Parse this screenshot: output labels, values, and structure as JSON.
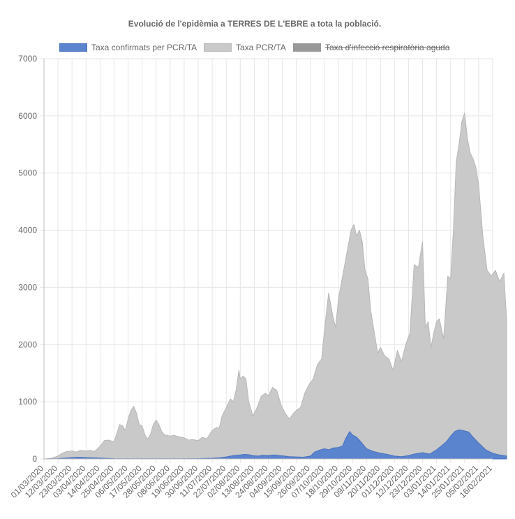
{
  "chart_data": {
    "type": "area",
    "title": "Evolució de l'epidèmia a TERRES DE L'EBRE a tota la població.",
    "xlabel": "",
    "ylabel": "",
    "ylim": [
      0,
      7000
    ],
    "yticks": [
      0,
      1000,
      2000,
      3000,
      4000,
      5000,
      6000,
      7000
    ],
    "grid": true,
    "legend_position": "top",
    "categories": [
      "01/03/2020",
      "12/03/2020",
      "23/03/2020",
      "03/04/2020",
      "14/04/2020",
      "25/04/2020",
      "06/05/2020",
      "17/05/2020",
      "28/05/2020",
      "08/06/2020",
      "19/06/2020",
      "30/06/2020",
      "11/07/2020",
      "22/07/2020",
      "02/08/2020",
      "13/08/2020",
      "24/08/2020",
      "04/09/2020",
      "15/09/2020",
      "26/09/2020",
      "07/10/2020",
      "18/10/2020",
      "29/10/2020",
      "09/11/2020",
      "20/11/2020",
      "01/12/2020",
      "12/12/2020",
      "23/12/2020",
      "03/01/2021",
      "14/01/2021",
      "25/01/2021",
      "05/02/2021",
      "16/02/2021"
    ],
    "series": [
      {
        "name": "Taxa confirmats per PCR/TA",
        "color": "#5b84cf",
        "border_color": "#4a72c0",
        "hidden": false,
        "points": [
          [
            0,
            0
          ],
          [
            0.5,
            3
          ],
          [
            1,
            5
          ],
          [
            1.5,
            15
          ],
          [
            2,
            25
          ],
          [
            2.5,
            30
          ],
          [
            3,
            25
          ],
          [
            3.5,
            20
          ],
          [
            4,
            15
          ],
          [
            4.5,
            10
          ],
          [
            5,
            5
          ],
          [
            6,
            4
          ],
          [
            7,
            4
          ],
          [
            8,
            4
          ],
          [
            9,
            3
          ],
          [
            10,
            3
          ],
          [
            11,
            5
          ],
          [
            11.5,
            8
          ],
          [
            12,
            12
          ],
          [
            12.5,
            20
          ],
          [
            13,
            35
          ],
          [
            13.5,
            60
          ],
          [
            14,
            70
          ],
          [
            14.3,
            80
          ],
          [
            14.6,
            75
          ],
          [
            15,
            55
          ],
          [
            15.3,
            50
          ],
          [
            15.6,
            65
          ],
          [
            16,
            60
          ],
          [
            16.4,
            70
          ],
          [
            16.8,
            60
          ],
          [
            17,
            55
          ],
          [
            17.5,
            40
          ],
          [
            18,
            35
          ],
          [
            18.5,
            30
          ],
          [
            19,
            50
          ],
          [
            19.3,
            120
          ],
          [
            19.6,
            150
          ],
          [
            20,
            180
          ],
          [
            20.3,
            160
          ],
          [
            20.6,
            190
          ],
          [
            21,
            200
          ],
          [
            21.3,
            230
          ],
          [
            21.5,
            350
          ],
          [
            21.8,
            480
          ],
          [
            22,
            420
          ],
          [
            22.3,
            380
          ],
          [
            22.6,
            300
          ],
          [
            23,
            180
          ],
          [
            23.5,
            130
          ],
          [
            24,
            100
          ],
          [
            24.5,
            80
          ],
          [
            25,
            50
          ],
          [
            25.5,
            40
          ],
          [
            26,
            60
          ],
          [
            26.5,
            90
          ],
          [
            27,
            110
          ],
          [
            27.5,
            85
          ],
          [
            28,
            160
          ],
          [
            28.3,
            220
          ],
          [
            28.7,
            300
          ],
          [
            29,
            400
          ],
          [
            29.3,
            480
          ],
          [
            29.6,
            510
          ],
          [
            30,
            490
          ],
          [
            30.3,
            470
          ],
          [
            30.6,
            380
          ],
          [
            31,
            280
          ],
          [
            31.5,
            160
          ],
          [
            32,
            100
          ],
          [
            32.5,
            70
          ],
          [
            33,
            50
          ]
        ]
      },
      {
        "name": "Taxa PCR/TA",
        "color": "#c9c9c9",
        "border_color": "#b8b8b8",
        "hidden": false,
        "points": [
          [
            0,
            0
          ],
          [
            0.5,
            10
          ],
          [
            1,
            50
          ],
          [
            1.3,
            100
          ],
          [
            1.6,
            130
          ],
          [
            2,
            140
          ],
          [
            2.3,
            120
          ],
          [
            2.6,
            150
          ],
          [
            3,
            140
          ],
          [
            3.3,
            150
          ],
          [
            3.6,
            130
          ],
          [
            4,
            220
          ],
          [
            4.3,
            320
          ],
          [
            4.6,
            330
          ],
          [
            5,
            300
          ],
          [
            5.2,
            450
          ],
          [
            5.4,
            600
          ],
          [
            5.6,
            580
          ],
          [
            5.8,
            500
          ],
          [
            6,
            700
          ],
          [
            6.2,
            850
          ],
          [
            6.4,
            920
          ],
          [
            6.6,
            800
          ],
          [
            6.8,
            600
          ],
          [
            7,
            580
          ],
          [
            7.2,
            420
          ],
          [
            7.4,
            350
          ],
          [
            7.6,
            430
          ],
          [
            7.8,
            600
          ],
          [
            8,
            680
          ],
          [
            8.2,
            600
          ],
          [
            8.4,
            480
          ],
          [
            8.6,
            420
          ],
          [
            9,
            400
          ],
          [
            9.3,
            410
          ],
          [
            9.6,
            390
          ],
          [
            10,
            370
          ],
          [
            10.3,
            330
          ],
          [
            10.6,
            340
          ],
          [
            11,
            320
          ],
          [
            11.3,
            380
          ],
          [
            11.6,
            350
          ],
          [
            12,
            500
          ],
          [
            12.3,
            550
          ],
          [
            12.5,
            540
          ],
          [
            12.7,
            750
          ],
          [
            13,
            900
          ],
          [
            13.3,
            1050
          ],
          [
            13.5,
            1000
          ],
          [
            13.7,
            1200
          ],
          [
            13.9,
            1550
          ],
          [
            14,
            1400
          ],
          [
            14.2,
            1450
          ],
          [
            14.4,
            1400
          ],
          [
            14.6,
            1000
          ],
          [
            14.9,
            750
          ],
          [
            15.2,
            900
          ],
          [
            15.5,
            1100
          ],
          [
            15.8,
            1150
          ],
          [
            16,
            1100
          ],
          [
            16.3,
            1250
          ],
          [
            16.6,
            1200
          ],
          [
            16.9,
            950
          ],
          [
            17.2,
            800
          ],
          [
            17.5,
            700
          ],
          [
            17.8,
            800
          ],
          [
            18,
            850
          ],
          [
            18.3,
            900
          ],
          [
            18.6,
            1150
          ],
          [
            18.9,
            1300
          ],
          [
            19.2,
            1400
          ],
          [
            19.5,
            1650
          ],
          [
            19.8,
            1750
          ],
          [
            20,
            2250
          ],
          [
            20.3,
            2900
          ],
          [
            20.6,
            2500
          ],
          [
            20.8,
            2300
          ],
          [
            21,
            2800
          ],
          [
            21.3,
            3200
          ],
          [
            21.6,
            3600
          ],
          [
            21.9,
            4000
          ],
          [
            22.1,
            4100
          ],
          [
            22.3,
            3900
          ],
          [
            22.5,
            4000
          ],
          [
            22.7,
            3800
          ],
          [
            22.9,
            3300
          ],
          [
            23.1,
            3150
          ],
          [
            23.3,
            2600
          ],
          [
            23.5,
            2300
          ],
          [
            23.8,
            1850
          ],
          [
            24,
            1950
          ],
          [
            24.3,
            1800
          ],
          [
            24.6,
            1750
          ],
          [
            24.9,
            1550
          ],
          [
            25.2,
            1900
          ],
          [
            25.5,
            1700
          ],
          [
            25.8,
            2000
          ],
          [
            26.1,
            2200
          ],
          [
            26.4,
            3400
          ],
          [
            26.7,
            3350
          ],
          [
            27,
            3800
          ],
          [
            27.2,
            2300
          ],
          [
            27.4,
            2400
          ],
          [
            27.6,
            1950
          ],
          [
            27.8,
            2200
          ],
          [
            28,
            2400
          ],
          [
            28.2,
            2450
          ],
          [
            28.5,
            2100
          ],
          [
            28.8,
            3200
          ],
          [
            29,
            3150
          ],
          [
            29.2,
            4000
          ],
          [
            29.4,
            5200
          ],
          [
            29.6,
            5500
          ],
          [
            29.8,
            5900
          ],
          [
            30,
            6050
          ],
          [
            30.2,
            5600
          ],
          [
            30.4,
            5350
          ],
          [
            30.6,
            5250
          ],
          [
            30.8,
            5100
          ],
          [
            31,
            4800
          ],
          [
            31.3,
            3900
          ],
          [
            31.6,
            3300
          ],
          [
            31.9,
            3200
          ],
          [
            32.2,
            3300
          ],
          [
            32.5,
            3100
          ],
          [
            32.8,
            3250
          ],
          [
            33,
            2400
          ]
        ]
      },
      {
        "name": "Taxa d'infecció respiratòria aguda",
        "color": "#999999",
        "border_color": "#999999",
        "hidden": true,
        "points": []
      }
    ]
  }
}
